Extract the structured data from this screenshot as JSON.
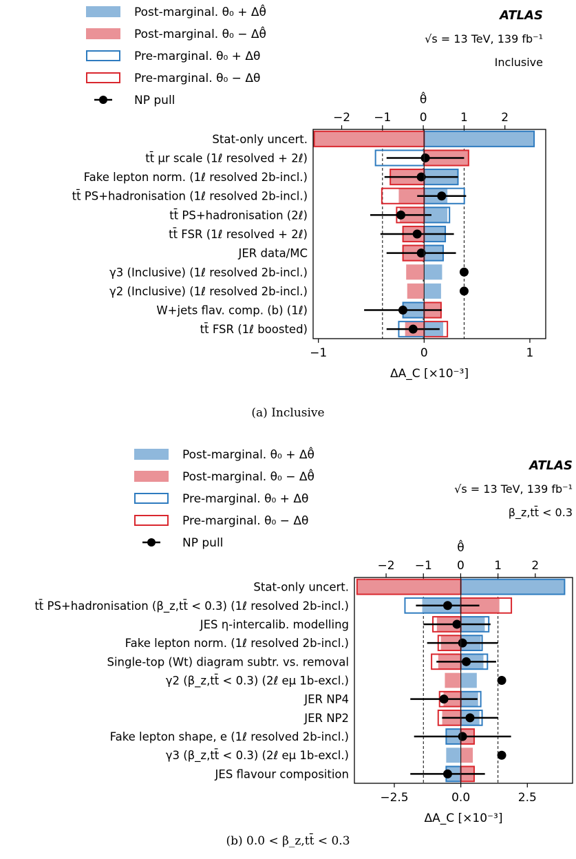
{
  "legend": {
    "post_plus": "Post-marginal. θ₀ + Δθ̂",
    "post_minus": "Post-marginal. θ₀ − Δθ̂",
    "pre_plus": "Pre-marginal. θ₀ + Δθ",
    "pre_minus": "Pre-marginal. θ₀ − Δθ",
    "pull": "NP pull"
  },
  "colors": {
    "post_plus_fill": "#8fb8dc",
    "post_minus_fill": "#ea9297",
    "pre_plus_edge": "#2e7bbf",
    "pre_minus_edge": "#d9272e",
    "pull": "#000000"
  },
  "captions": {
    "a": "(a) Inclusive",
    "b": "(b) 0.0 < β_z,tt̄ < 0.3"
  },
  "chart_data": [
    {
      "type": "bar",
      "orientation": "horizontal",
      "experiment": "ATLAS",
      "energy_label": "√s = 13 TeV, 139 fb⁻¹",
      "region_label": "Inclusive",
      "xlabel": "ΔA_C [×10⁻³]",
      "top_axis_label": "θ̂",
      "xlim": [
        -1.05,
        1.15
      ],
      "xticks": [
        -1,
        0,
        1
      ],
      "xtick_labels": [
        "−1",
        "0",
        "1"
      ],
      "theta_lim": [
        -2.7,
        3.0
      ],
      "theta_ticks": [
        -2,
        -1,
        0,
        1,
        2
      ],
      "theta_tick_labels": [
        "−2",
        "−1",
        "0",
        "1",
        "2"
      ],
      "legend_position": "top-left",
      "categories": [
        "Stat-only uncert.",
        "tt̄ μr scale (1ℓ resolved + 2ℓ)",
        "Fake lepton norm. (1ℓ resolved 2b-incl.)",
        "tt̄ PS+hadronisation (1ℓ resolved 2b-incl.)",
        "tt̄ PS+hadronisation (2ℓ)",
        "tt̄ FSR (1ℓ resolved + 2ℓ)",
        "JER data/MC",
        "γ3 (Inclusive) (1ℓ resolved 2b-incl.)",
        "γ2 (Inclusive) (1ℓ resolved 2b-incl.)",
        "W+jets flav. comp. (b) (1ℓ)",
        "tt̄ FSR (1ℓ boosted)"
      ],
      "series": [
        {
          "name": "Post-marginal. θ₀ + Δθ̂",
          "values": [
            1.04,
            0.34,
            0.32,
            0.22,
            0.22,
            0.2,
            0.18,
            0.17,
            0.16,
            -0.2,
            0.18
          ]
        },
        {
          "name": "Post-marginal. θ₀ − Δθ̂",
          "values": [
            -1.04,
            0.42,
            -0.32,
            -0.24,
            -0.23,
            -0.2,
            -0.2,
            -0.17,
            -0.16,
            0.16,
            -0.18
          ]
        },
        {
          "name": "Pre-marginal. θ₀ + Δθ",
          "values": [
            1.04,
            -0.46,
            0.32,
            0.38,
            0.24,
            0.2,
            0.18,
            null,
            null,
            -0.2,
            -0.24
          ]
        },
        {
          "name": "Pre-marginal. θ₀ − Δθ",
          "values": [
            -1.04,
            0.42,
            -0.32,
            -0.4,
            -0.26,
            -0.2,
            -0.2,
            null,
            null,
            0.16,
            0.22
          ]
        }
      ],
      "np_pull": {
        "name": "NP pull",
        "values": [
          null,
          0.05,
          -0.05,
          0.45,
          -0.55,
          -0.15,
          -0.05,
          1.0,
          1.0,
          -0.5,
          -0.25
        ],
        "errors": [
          null,
          0.95,
          0.9,
          0.6,
          0.75,
          0.9,
          0.85,
          0,
          0,
          0.95,
          0.65
        ]
      },
      "vlines_theta": [
        -1,
        0,
        1
      ]
    },
    {
      "type": "bar",
      "orientation": "horizontal",
      "experiment": "ATLAS",
      "energy_label": "√s = 13 TeV, 139 fb⁻¹",
      "region_label": "β_z,tt̄ < 0.3",
      "xlabel": "ΔA_C [×10⁻³]",
      "top_axis_label": "θ̂",
      "xlim": [
        -4.0,
        4.2
      ],
      "xticks": [
        -2.5,
        0,
        2.5
      ],
      "xtick_labels": [
        "−2.5",
        "0.0",
        "2.5"
      ],
      "theta_lim": [
        -2.85,
        3.0
      ],
      "theta_ticks": [
        -2,
        -1,
        0,
        1,
        2
      ],
      "theta_tick_labels": [
        "−2",
        "−1",
        "0",
        "1",
        "2"
      ],
      "legend_position": "top-left",
      "categories": [
        "Stat-only uncert.",
        "tt̄ PS+hadronisation (β_z,tt̄ < 0.3) (1ℓ resolved 2b-incl.)",
        "JES η-intercalib. modelling",
        "Fake lepton norm. (1ℓ resolved 2b-incl.)",
        "Single-top (Wt) diagram subtr. vs. removal",
        "γ2 (β_z,tt̄ < 0.3) (2ℓ eμ 1b-excl.)",
        "JER NP4",
        "JER NP2",
        "Fake lepton shape, e (1ℓ resolved 2b-incl.)",
        "γ3 (β_z,tt̄ < 0.3) (2ℓ eμ 1b-excl.)",
        "JES flavour composition"
      ],
      "series": [
        {
          "name": "Post-marginal. θ₀ + Δθ̂",
          "values": [
            3.9,
            -1.45,
            0.9,
            0.75,
            0.85,
            0.6,
            0.65,
            0.7,
            -0.55,
            -0.55,
            -0.55
          ]
        },
        {
          "name": "Post-marginal. θ₀ − Δθ̂",
          "values": [
            -3.9,
            1.45,
            -0.9,
            -0.75,
            -0.85,
            -0.6,
            -0.65,
            -0.7,
            0.5,
            0.45,
            0.5
          ]
        },
        {
          "name": "Pre-marginal. θ₀ + Δθ",
          "values": [
            3.9,
            -2.1,
            1.05,
            0.8,
            1.0,
            null,
            0.75,
            0.8,
            -0.55,
            null,
            -0.55
          ]
        },
        {
          "name": "Pre-marginal. θ₀ − Δθ",
          "values": [
            -3.9,
            1.9,
            -1.05,
            -0.85,
            -1.1,
            null,
            -0.8,
            -0.85,
            0.5,
            null,
            0.5
          ]
        }
      ],
      "np_pull": {
        "name": "NP pull",
        "values": [
          null,
          -0.35,
          -0.1,
          0.05,
          0.15,
          1.1,
          -0.45,
          0.25,
          0.05,
          1.1,
          -0.35
        ],
        "errors": [
          null,
          0.85,
          0.9,
          0.95,
          0.8,
          0,
          0.9,
          0.75,
          1.3,
          0,
          1.0
        ]
      },
      "vlines_theta": [
        -1,
        0,
        1
      ]
    }
  ]
}
